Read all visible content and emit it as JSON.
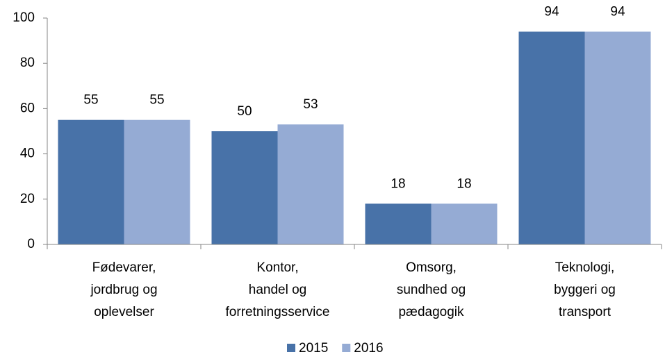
{
  "chart_data": {
    "type": "bar",
    "categories": [
      [
        "Fødevarer,",
        "jordbrug og",
        "oplevelser"
      ],
      [
        "Kontor,",
        "handel og",
        "forretningsservice"
      ],
      [
        "Omsorg,",
        "sundhed og",
        "pædagogik"
      ],
      [
        "Teknologi,",
        "byggeri og",
        "transport"
      ]
    ],
    "series": [
      {
        "name": "2015",
        "color": "#4872a8",
        "values": [
          55,
          50,
          18,
          94
        ]
      },
      {
        "name": "2016",
        "color": "#95abd4",
        "values": [
          55,
          53,
          18,
          94
        ]
      }
    ],
    "ylim": [
      0,
      100
    ],
    "yticks": [
      0,
      20,
      40,
      60,
      80,
      100
    ],
    "grid": false,
    "legend": "bottom"
  }
}
